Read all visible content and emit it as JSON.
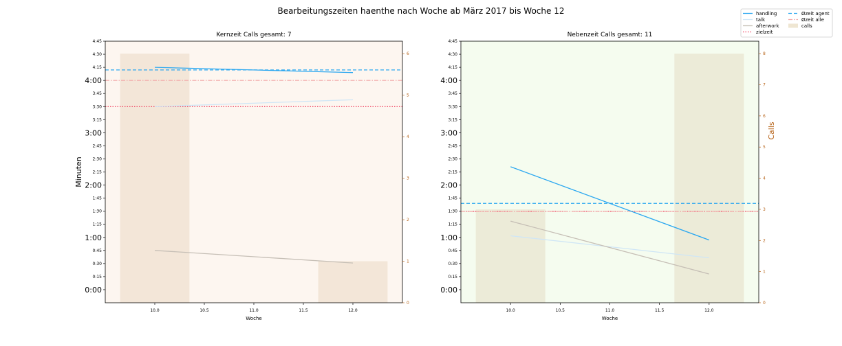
{
  "figure": {
    "suptitle": "Bearbeitungszeiten haenthe nach Woche ab März 2017 bis Woche 12",
    "legend": {
      "placement": "top-right",
      "entries": [
        {
          "label": "handling",
          "style": "solid",
          "color": "#2aa7f0"
        },
        {
          "label": "talk",
          "style": "solid",
          "color": "#cfe6f6"
        },
        {
          "label": "afterwork",
          "style": "solid",
          "color": "#c6bfb6"
        },
        {
          "label": "zielzeit",
          "style": "dotted",
          "color": "#f03a5a"
        },
        {
          "label": "Øzeit agent",
          "style": "dashed",
          "color": "#2aa7f0"
        },
        {
          "label": "Øzeit alle",
          "style": "dashdot",
          "color": "#f2a7a7"
        },
        {
          "label": "calls",
          "style": "patch",
          "color": "#efe6d2"
        }
      ]
    }
  },
  "chart_data": [
    {
      "type": "line",
      "title": "Kernzeit Calls gesamt: 7",
      "xlabel": "Woche",
      "ylabel": "Minuten",
      "ylabel_right": "",
      "background": "#fdf6f0",
      "bar_color": "#f3e6d8",
      "xlim": [
        9.5,
        12.5
      ],
      "ylim": [
        -0.25,
        4.75
      ],
      "ylim_right": [
        0,
        6.3
      ],
      "x_ticks": [
        "10.0",
        "10.5",
        "11.0",
        "11.5",
        "12.0"
      ],
      "x_tick_values": [
        10.0,
        10.5,
        11.0,
        11.5,
        12.0
      ],
      "y_ticks": [
        "0:00",
        "0:15",
        "0:30",
        "0:45",
        "1:00",
        "1:15",
        "1:30",
        "1:45",
        "2:00",
        "2:15",
        "2:30",
        "2:45",
        "3:00",
        "3:15",
        "3:30",
        "3:45",
        "4:00",
        "4:15",
        "4:30",
        "4:45"
      ],
      "y_ticks_right": [
        "0",
        "1",
        "2",
        "3",
        "4",
        "5",
        "6"
      ],
      "x": [
        10,
        12
      ],
      "series": [
        {
          "name": "handling",
          "values": [
            4.25,
            4.15
          ]
        },
        {
          "name": "talk",
          "values": [
            3.5,
            3.63
          ]
        },
        {
          "name": "afterwork",
          "values": [
            0.75,
            0.51
          ]
        }
      ],
      "hlines": [
        {
          "name": "zielzeit",
          "value": 3.5
        },
        {
          "name": "Øzeit agent",
          "value": 4.2
        },
        {
          "name": "Øzeit alle",
          "value": 4.0
        }
      ],
      "calls": {
        "x": [
          10,
          12
        ],
        "values": [
          6,
          1
        ]
      }
    },
    {
      "type": "line",
      "title": "Nebenzeit Calls gesamt: 11",
      "xlabel": "Woche",
      "ylabel": "",
      "ylabel_right": "Calls",
      "background": "#f5fcef",
      "bar_color": "#ecebd8",
      "xlim": [
        9.5,
        12.5
      ],
      "ylim": [
        -0.25,
        4.75
      ],
      "ylim_right": [
        0,
        8.4
      ],
      "x_ticks": [
        "10.0",
        "10.5",
        "11.0",
        "11.5",
        "12.0"
      ],
      "x_tick_values": [
        10.0,
        10.5,
        11.0,
        11.5,
        12.0
      ],
      "y_ticks": [
        "0:00",
        "0:15",
        "0:30",
        "0:45",
        "1:00",
        "1:15",
        "1:30",
        "1:45",
        "2:00",
        "2:15",
        "2:30",
        "2:45",
        "3:00",
        "3:15",
        "3:30",
        "3:45",
        "4:00",
        "4:15",
        "4:30",
        "4:45"
      ],
      "y_ticks_right": [
        "0",
        "1",
        "2",
        "3",
        "4",
        "5",
        "6",
        "7",
        "8"
      ],
      "x": [
        10,
        12
      ],
      "series": [
        {
          "name": "handling",
          "values": [
            2.35,
            0.95
          ]
        },
        {
          "name": "talk",
          "values": [
            1.03,
            0.61
          ]
        },
        {
          "name": "afterwork",
          "values": [
            1.31,
            0.3
          ]
        }
      ],
      "hlines": [
        {
          "name": "zielzeit",
          "value": 1.5
        },
        {
          "name": "Øzeit agent",
          "value": 1.65
        },
        {
          "name": "Øzeit alle",
          "value": 1.5
        }
      ],
      "calls": {
        "x": [
          10,
          12
        ],
        "values": [
          3,
          8
        ]
      }
    }
  ]
}
